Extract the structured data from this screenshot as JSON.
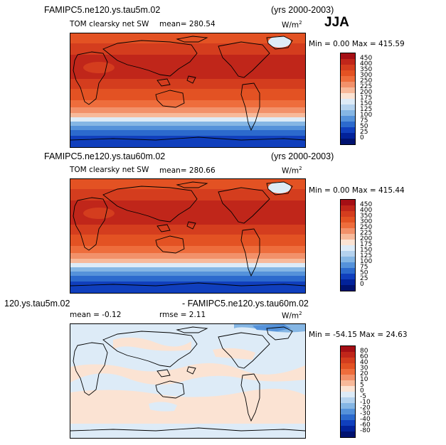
{
  "season": "JJA",
  "panels": [
    {
      "case": "FAMIPC5.ne120.ys.tau5m.02",
      "years": "(yrs 2000-2003)",
      "field": "TOM clearsky net SW",
      "mean": "mean= 280.54",
      "units": "W/m",
      "units_sup": "2",
      "minmax": "Min =    0.00 Max = 415.59",
      "levels": [
        "450",
        "400",
        "350",
        "300",
        "250",
        "225",
        "200",
        "175",
        "150",
        "125",
        "100",
        "75",
        "50",
        "25",
        "0"
      ],
      "colors": [
        "#a50f15",
        "#c0261a",
        "#d43d1e",
        "#e35223",
        "#ee6d3c",
        "#f2916a",
        "#f7b99a",
        "#fbe3d3",
        "#ddebf7",
        "#b4d2ee",
        "#85b6e4",
        "#5592da",
        "#2c6acd",
        "#103fbd",
        "#02229a",
        "#001270"
      ]
    },
    {
      "case": "FAMIPC5.ne120.ys.tau60m.02",
      "years": "(yrs 2000-2003)",
      "field": "TOM clearsky net SW",
      "mean": "mean= 280.66",
      "units": "W/m",
      "units_sup": "2",
      "minmax": "Min =    0.00 Max = 415.44",
      "levels": [
        "450",
        "400",
        "350",
        "300",
        "250",
        "225",
        "200",
        "175",
        "150",
        "125",
        "100",
        "75",
        "50",
        "25",
        "0"
      ],
      "colors": [
        "#a50f15",
        "#c0261a",
        "#d43d1e",
        "#e35223",
        "#ee6d3c",
        "#f2916a",
        "#f7b99a",
        "#fbe3d3",
        "#ddebf7",
        "#b4d2ee",
        "#85b6e4",
        "#5592da",
        "#2c6acd",
        "#103fbd",
        "#02229a",
        "#001270"
      ]
    },
    {
      "case_left": "120.ys.tau5m.02",
      "case_right": "- FAMIPC5.ne120.ys.tau60m.02",
      "mean": "mean =  -0.12",
      "rmse": "rmse =   2.11",
      "units": "W/m",
      "units_sup": "2",
      "minmax": "Min = -54.15 Max =  24.63",
      "levels": [
        "80",
        "60",
        "40",
        "30",
        "20",
        "10",
        "5",
        "0",
        "-5",
        "-10",
        "-20",
        "-30",
        "-40",
        "-60",
        "-80"
      ],
      "colors": [
        "#a50f15",
        "#c0261a",
        "#d43d1e",
        "#e35223",
        "#ee6d3c",
        "#f2916a",
        "#f7b99a",
        "#fbe3d3",
        "#ddebf7",
        "#b4d2ee",
        "#85b6e4",
        "#5592da",
        "#2c6acd",
        "#103fbd",
        "#02229a",
        "#001270"
      ]
    }
  ]
}
